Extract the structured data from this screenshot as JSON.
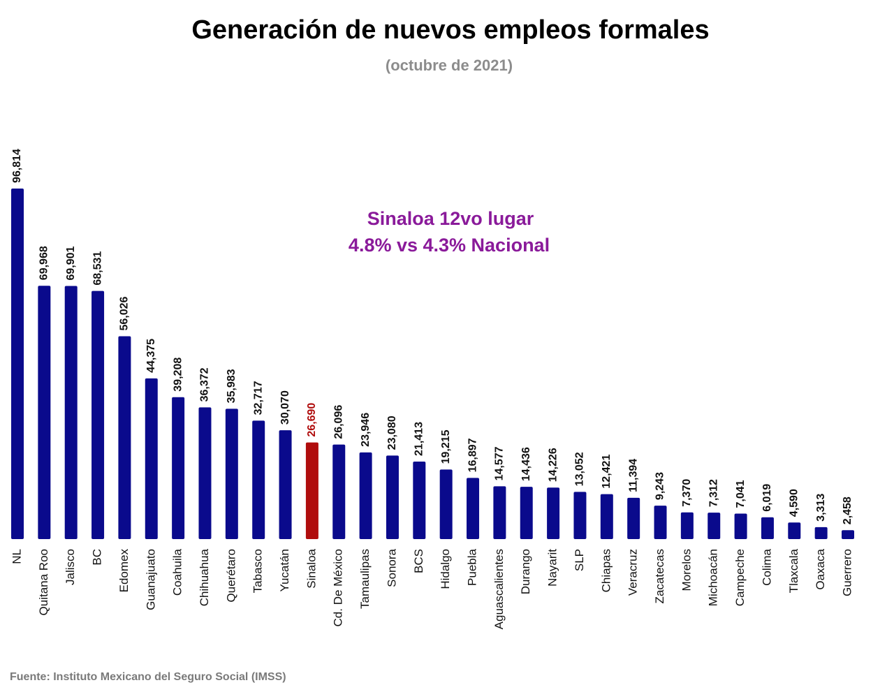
{
  "chart_data": {
    "type": "bar",
    "title": "Generación de nuevos empleos formales",
    "subtitle": "(octubre de 2021)",
    "annotation": [
      "Sinaloa 12vo lugar",
      "4.8% vs 4.3% Nacional"
    ],
    "source": "Fuente: Instituto Mexicano del Seguro Social (IMSS)",
    "categories": [
      "NL",
      "Quitana Roo",
      "Jalisco",
      "BC",
      "Edomex",
      "Guanajuato",
      "Coahuila",
      "Chihuahua",
      "Querétaro",
      "Tabasco",
      "Yucatán",
      "Sinaloa",
      "Cd. De México",
      "Tamaulipas",
      "Sonora",
      "BCS",
      "Hidalgo",
      "Puebla",
      "Aguascalientes",
      "Durango",
      "Nayarit",
      "SLP",
      "Chiapas",
      "Veracruz",
      "Zacatecas",
      "Morelos",
      "Michoacán",
      "Campeche",
      "Colima",
      "Tlaxcala",
      "Oaxaca",
      "Guerrero"
    ],
    "values": [
      96814,
      69968,
      69901,
      68531,
      56026,
      44375,
      39208,
      36372,
      35983,
      32717,
      30070,
      26690,
      26096,
      23946,
      23080,
      21413,
      19215,
      16897,
      14577,
      14436,
      14226,
      13052,
      12421,
      11394,
      9243,
      7370,
      7312,
      7041,
      6019,
      4590,
      3313,
      2458
    ],
    "value_labels": [
      "96,814",
      "69,968",
      "69,901",
      "68,531",
      "56,026",
      "44,375",
      "39,208",
      "36,372",
      "35,983",
      "32,717",
      "30,070",
      "26,690",
      "26,096",
      "23,946",
      "23,080",
      "21,413",
      "19,215",
      "16,897",
      "14,577",
      "14,436",
      "14,226",
      "13,052",
      "12,421",
      "11,394",
      "9,243",
      "7,370",
      "7,312",
      "7,041",
      "6,019",
      "4,590",
      "3,313",
      "2,458"
    ],
    "color": "#0a0a8c",
    "highlight": {
      "index": 11,
      "color": "#b00d0d"
    },
    "annotation_color": "#8a1a9a"
  }
}
